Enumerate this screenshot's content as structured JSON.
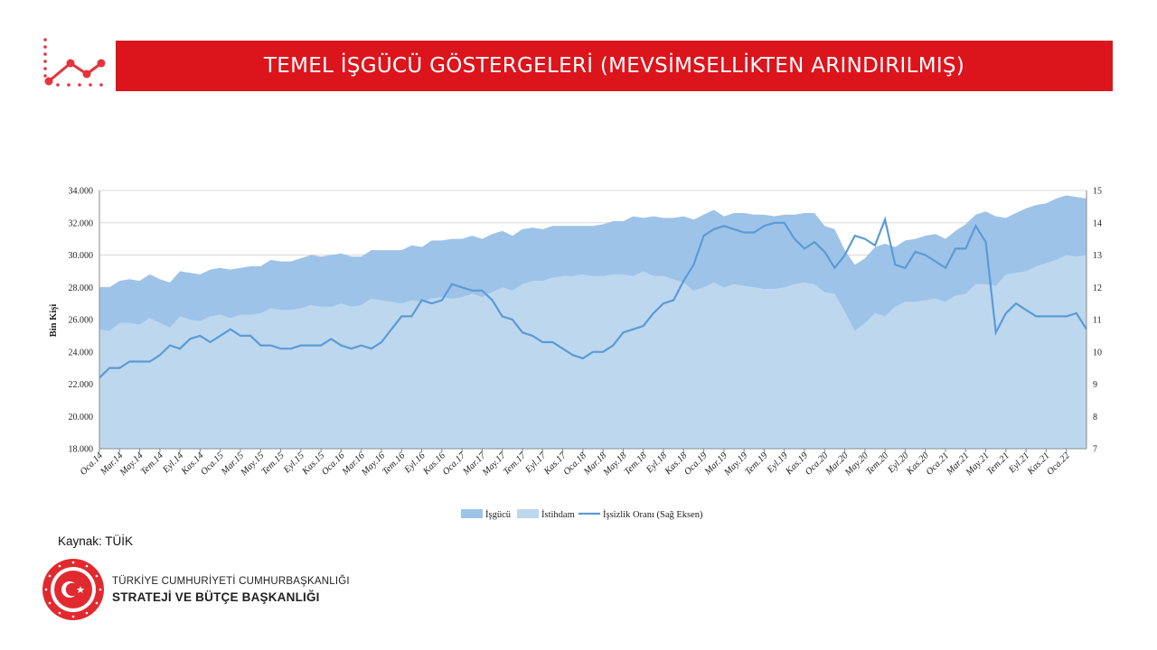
{
  "header": {
    "title": "TEMEL İŞGÜCÜ GÖSTERGELERİ (MEVSİMSELLİKTEN ARINDIRILMIŞ)",
    "accent_color": "#dc141c",
    "logo_icon": "line-chart-icon"
  },
  "chart_data": {
    "type": "area",
    "ylabel": "Bin Kişi",
    "ylim": [
      18000,
      34000
    ],
    "y2lim": [
      7,
      15
    ],
    "y_ticks": [
      "18.000",
      "20.000",
      "22.000",
      "24.000",
      "26.000",
      "28.000",
      "30.000",
      "32.000",
      "34.000"
    ],
    "y2_ticks": [
      "7",
      "8",
      "9",
      "10",
      "11",
      "12",
      "13",
      "14",
      "15"
    ],
    "x_tick_labels": [
      "Oca.14",
      "Mar.14",
      "May.14",
      "Tem.14",
      "Eyl.14",
      "Kas.14",
      "Oca.15",
      "Mar.15",
      "May.15",
      "Tem.15",
      "Eyl.15",
      "Kas.15",
      "Oca.16",
      "Mar.16",
      "May.16",
      "Tem.16",
      "Eyl.16",
      "Kas.16",
      "Oca.17",
      "Mar.17",
      "May.17",
      "Tem.17",
      "Eyl.17",
      "Kas.17",
      "Oca.18",
      "Mar.18",
      "May.18",
      "Tem.18",
      "Eyl.18",
      "Kas.18",
      "Oca.19",
      "Mar.19",
      "May.19",
      "Tem.19",
      "Eyl.19",
      "Kas.19",
      "Oca.20",
      "Mar.20",
      "May.20",
      "Tem.20",
      "Eyl.20",
      "Kas.20",
      "Oca.21",
      "Mar.21",
      "May.21",
      "Tem.21",
      "Eyl.21",
      "Kas.21",
      "Oca.22"
    ],
    "grid": true,
    "legend_position": "bottom",
    "series": [
      {
        "name": "İşgücü",
        "color": "#9ec3e8",
        "axis": "left",
        "values": [
          28000,
          28000,
          28400,
          28500,
          28400,
          28800,
          28500,
          28300,
          29000,
          28900,
          28800,
          29100,
          29200,
          29100,
          29200,
          29300,
          29300,
          29700,
          29600,
          29600,
          29800,
          30000,
          29900,
          30000,
          30100,
          29900,
          29900,
          30300,
          30300,
          30300,
          30300,
          30600,
          30500,
          30900,
          30900,
          31000,
          31000,
          31200,
          31000,
          31300,
          31500,
          31200,
          31600,
          31700,
          31600,
          31800,
          31800,
          31800,
          31800,
          31800,
          31900,
          32100,
          32100,
          32400,
          32300,
          32400,
          32300,
          32300,
          32400,
          32200,
          32500,
          32800,
          32400,
          32600,
          32600,
          32500,
          32500,
          32400,
          32500,
          32500,
          32600,
          32600,
          31800,
          31600,
          30300,
          29400,
          29800,
          30500,
          30700,
          30500,
          30900,
          31000,
          31200,
          31300,
          31000,
          31500,
          31900,
          32500,
          32700,
          32400,
          32300,
          32600,
          32900,
          33100,
          33200,
          33500,
          33700,
          33600,
          33500
        ]
      },
      {
        "name": "İstihdam",
        "color": "#bdd7ef",
        "axis": "left",
        "values": [
          25400,
          25300,
          25800,
          25800,
          25700,
          26100,
          25800,
          25500,
          26200,
          26000,
          25900,
          26200,
          26300,
          26100,
          26300,
          26300,
          26400,
          26700,
          26600,
          26600,
          26700,
          26900,
          26800,
          26800,
          27000,
          26800,
          26900,
          27300,
          27200,
          27100,
          27000,
          27200,
          27100,
          27300,
          27400,
          27300,
          27400,
          27600,
          27400,
          27700,
          28000,
          27800,
          28200,
          28400,
          28400,
          28600,
          28700,
          28700,
          28800,
          28700,
          28700,
          28800,
          28800,
          28700,
          29000,
          28700,
          28700,
          28500,
          28300,
          27800,
          28000,
          28300,
          28000,
          28200,
          28100,
          28000,
          27900,
          27900,
          28000,
          28200,
          28300,
          28200,
          27700,
          27600,
          26500,
          25300,
          25800,
          26400,
          26200,
          26800,
          27100,
          27100,
          27200,
          27300,
          27100,
          27500,
          27600,
          28200,
          28200,
          28100,
          28800,
          28900,
          29000,
          29300,
          29500,
          29700,
          30000,
          29900,
          30000
        ]
      },
      {
        "name": "İşsizlik Oranı (Sağ Eksen)",
        "color": "#5b9bd5",
        "axis": "right",
        "values": [
          9.2,
          9.5,
          9.5,
          9.7,
          9.7,
          9.7,
          9.9,
          10.2,
          10.1,
          10.4,
          10.5,
          10.3,
          10.5,
          10.7,
          10.5,
          10.5,
          10.2,
          10.2,
          10.1,
          10.1,
          10.2,
          10.2,
          10.2,
          10.4,
          10.2,
          10.1,
          10.2,
          10.1,
          10.3,
          10.7,
          11.1,
          11.1,
          11.6,
          11.5,
          11.6,
          12.1,
          12.0,
          11.9,
          11.9,
          11.6,
          11.1,
          11.0,
          10.6,
          10.5,
          10.3,
          10.3,
          10.1,
          9.9,
          9.8,
          10.0,
          10.0,
          10.2,
          10.6,
          10.7,
          10.8,
          11.2,
          11.5,
          11.6,
          12.2,
          12.7,
          13.6,
          13.8,
          13.9,
          13.8,
          13.7,
          13.7,
          13.9,
          14.0,
          14.0,
          13.5,
          13.2,
          13.4,
          13.1,
          12.6,
          13.0,
          13.6,
          13.5,
          13.3,
          14.1,
          12.7,
          12.6,
          13.1,
          13.0,
          12.8,
          12.6,
          13.2,
          13.2,
          13.9,
          13.4,
          10.6,
          11.2,
          11.5,
          11.3,
          11.1,
          11.1,
          11.1,
          11.1,
          11.2,
          10.7
        ]
      }
    ]
  },
  "source": {
    "text": "Kaynak: TÜİK"
  },
  "organization": {
    "line1": "TÜRKİYE CUMHURİYETİ CUMHURBAŞKANLIĞI",
    "line2": "STRATEJİ VE BÜTÇE BAŞKANLIĞI",
    "seal_icon": "presidency-seal-icon"
  }
}
